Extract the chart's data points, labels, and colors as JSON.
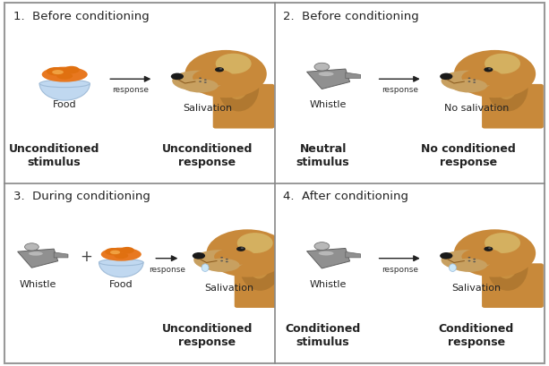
{
  "bg_color": "#ffffff",
  "border_color": "#aaaaaa",
  "divider_color": "#888888",
  "title_fontsize": 9.5,
  "label_fontsize": 8,
  "sublabel_fontsize": 9,
  "panel_titles": [
    "1.  Before conditioning",
    "2.  Before conditioning",
    "3.  During conditioning",
    "4.  After conditioning"
  ],
  "panel1": {
    "stimulus_label": "Food",
    "response_label": "Salivation",
    "arrow_label": "response",
    "bottom_left": "Unconditioned\nstimulus",
    "bottom_right": "Unconditioned\nresponse"
  },
  "panel2": {
    "stimulus_label": "Whistle",
    "response_label": "No salivation",
    "arrow_label": "response",
    "bottom_left": "Neutral\nstimulus",
    "bottom_right": "No conditioned\nresponse"
  },
  "panel3": {
    "stimulus_label1": "Whistle",
    "stimulus_label2": "Food",
    "response_label": "Salivation",
    "arrow_label": "response",
    "plus_sign": "+",
    "bottom_right": "Unconditioned\nresponse"
  },
  "panel4": {
    "stimulus_label": "Whistle",
    "response_label": "Salivation",
    "arrow_label": "response",
    "bottom_left": "Conditioned\nstimulus",
    "bottom_right": "Conditioned\nresponse"
  },
  "dog_body_color": "#c8893a",
  "dog_body_dark": "#b07830",
  "dog_snout_color": "#c8a060",
  "dog_yellow_patch": "#d4b060",
  "dog_nose_color": "#1a1a1a",
  "food_bowl_color": "#c0d8f0",
  "food_bowl_rim": "#a0bcd8",
  "food_color": "#e87820",
  "food_dark": "#c86010",
  "whistle_color": "#909090",
  "whistle_light": "#b8b8b8",
  "whistle_dark": "#606060",
  "drool_color": "#d0e8f8",
  "arrow_color": "#222222",
  "text_color": "#222222"
}
